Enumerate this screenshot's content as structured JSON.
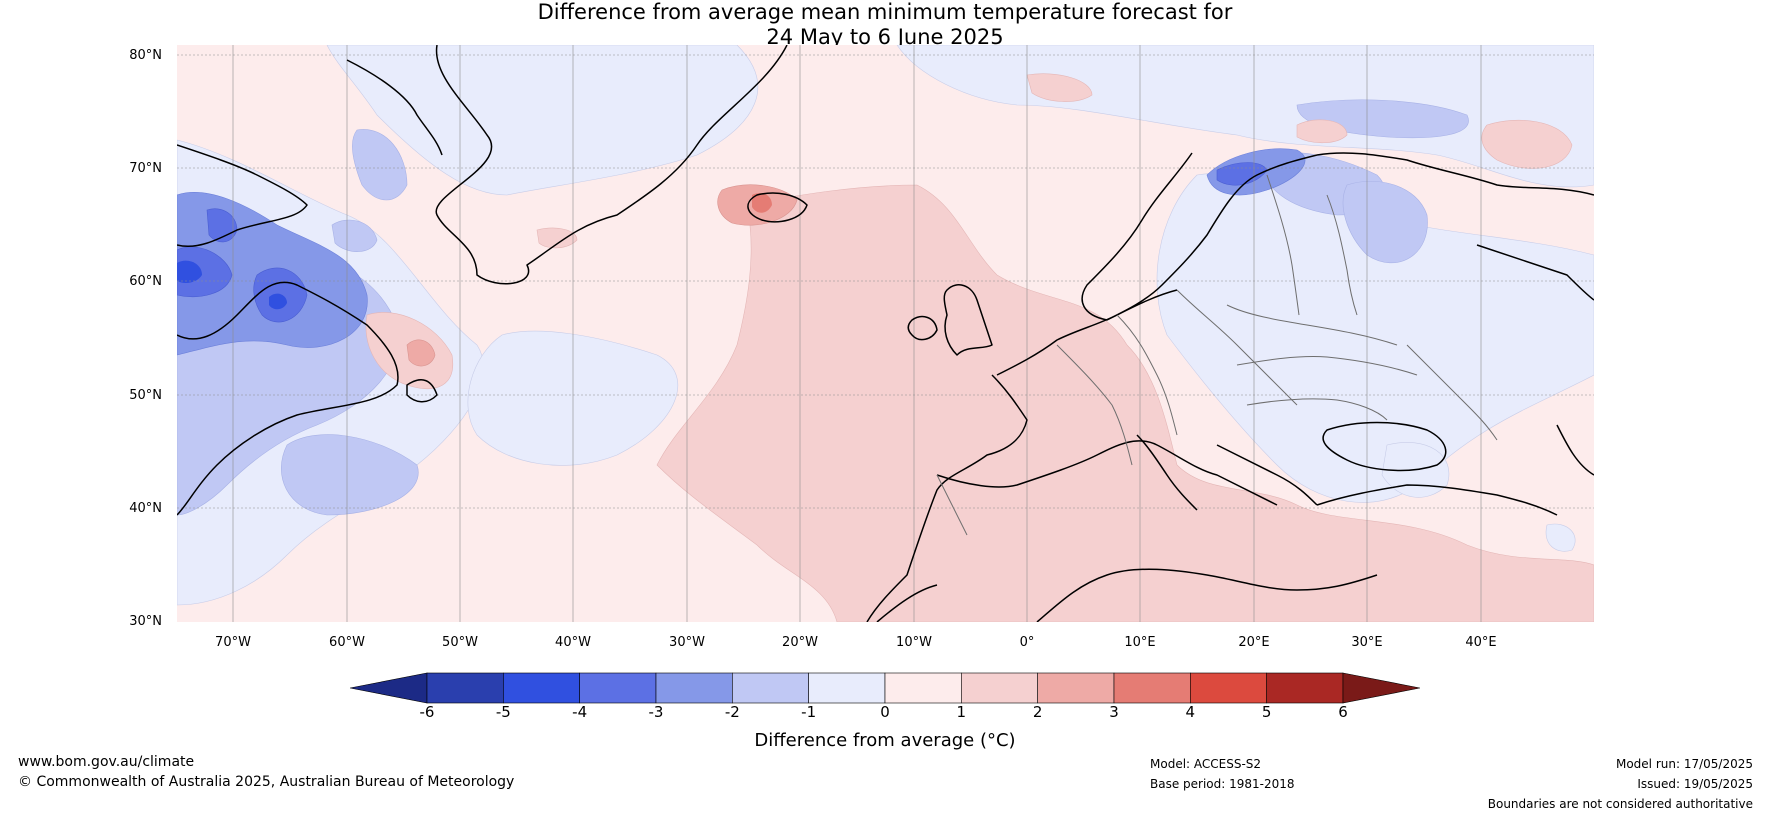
{
  "title_line1": "Difference from average mean minimum temperature forecast for",
  "title_line2": "24 May to 6 June 2025",
  "lat_labels": [
    "80°N",
    "70°N",
    "60°N",
    "50°N",
    "40°N",
    "30°N"
  ],
  "lon_labels": [
    "70°W",
    "60°W",
    "50°W",
    "40°W",
    "30°W",
    "20°W",
    "10°W",
    "0°",
    "10°E",
    "20°E",
    "30°E",
    "40°E"
  ],
  "colorbar": {
    "ticks": [
      "-6",
      "-5",
      "-4",
      "-3",
      "-2",
      "-1",
      "0",
      "1",
      "2",
      "3",
      "4",
      "5",
      "6"
    ],
    "colors": [
      "#2a3fae",
      "#3050e0",
      "#5c70e4",
      "#8598e8",
      "#c0c8f4",
      "#e8ecfc",
      "#fdecec",
      "#f5d0d0",
      "#eeaaa6",
      "#e57c74",
      "#dc4a3e",
      "#aa2824"
    ],
    "under_color": "#1c2a86",
    "over_color": "#7a1a18",
    "label": "Difference from average (°C)"
  },
  "footer": {
    "url": "www.bom.gov.au/climate",
    "copyright": "© Commonwealth of Australia 2025, Australian Bureau of Meteorology",
    "model": "Model: ACCESS-S2",
    "base_period": "Base period: 1981-2018",
    "model_run": "Model run: 17/05/2025",
    "issued": "Issued: 19/05/2025",
    "disclaimer": "Boundaries are not considered authoritative"
  }
}
